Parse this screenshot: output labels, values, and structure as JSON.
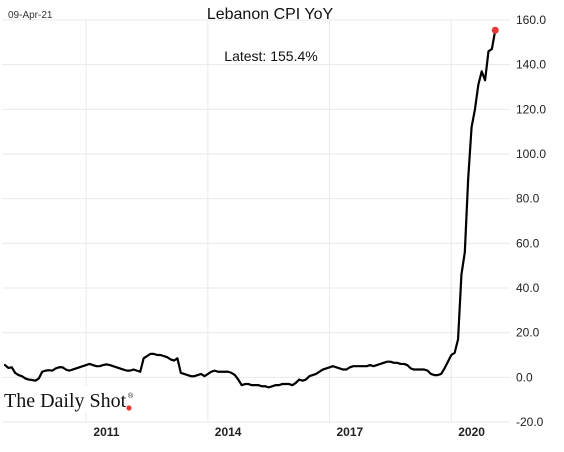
{
  "header": {
    "date_label": "09-Apr-21"
  },
  "brand": {
    "name": "The Daily Shot",
    "registered_mark": "®",
    "accent_color": "#e53935"
  },
  "chart_data": {
    "type": "line",
    "title": "Lebanon CPI YoY",
    "annotation": "Latest:  155.4%",
    "xlabel": "",
    "ylabel": "",
    "ylim": [
      -20,
      160
    ],
    "y_ticks": [
      "160.0",
      "140.0",
      "120.0",
      "100.0",
      "80.0",
      "60.0",
      "40.0",
      "20.0",
      "0.0",
      "-20.0"
    ],
    "x_ticks": [
      "2011",
      "2014",
      "2017",
      "2020"
    ],
    "grid": true,
    "line_color": "#000000",
    "last_point_color": "#e53935",
    "series": [
      {
        "values": [
          [
            "2009-01",
            5.5
          ],
          [
            "2009-02",
            4.2
          ],
          [
            "2009-03",
            4.5
          ],
          [
            "2009-04",
            2.0
          ],
          [
            "2009-05",
            1.0
          ],
          [
            "2009-06",
            0.5
          ],
          [
            "2009-07",
            -0.5
          ],
          [
            "2009-08",
            -1.0
          ],
          [
            "2009-09",
            -1.2
          ],
          [
            "2009-10",
            -1.5
          ],
          [
            "2009-11",
            -0.5
          ],
          [
            "2009-12",
            2.5
          ],
          [
            "2010-01",
            3.0
          ],
          [
            "2010-02",
            3.2
          ],
          [
            "2010-03",
            3.0
          ],
          [
            "2010-04",
            4.0
          ],
          [
            "2010-05",
            4.5
          ],
          [
            "2010-06",
            4.5
          ],
          [
            "2010-07",
            3.5
          ],
          [
            "2010-08",
            3.0
          ],
          [
            "2010-09",
            3.5
          ],
          [
            "2010-10",
            4.0
          ],
          [
            "2010-11",
            4.5
          ],
          [
            "2010-12",
            5.0
          ],
          [
            "2011-01",
            5.5
          ],
          [
            "2011-02",
            6.0
          ],
          [
            "2011-03",
            5.5
          ],
          [
            "2011-04",
            5.0
          ],
          [
            "2011-05",
            5.0
          ],
          [
            "2011-06",
            5.5
          ],
          [
            "2011-07",
            5.8
          ],
          [
            "2011-08",
            5.5
          ],
          [
            "2011-09",
            5.0
          ],
          [
            "2011-10",
            4.5
          ],
          [
            "2011-11",
            4.0
          ],
          [
            "2011-12",
            3.5
          ],
          [
            "2012-01",
            3.0
          ],
          [
            "2012-02",
            3.0
          ],
          [
            "2012-03",
            3.5
          ],
          [
            "2012-04",
            3.0
          ],
          [
            "2012-05",
            2.5
          ],
          [
            "2012-06",
            8.5
          ],
          [
            "2012-07",
            9.5
          ],
          [
            "2012-08",
            10.5
          ],
          [
            "2012-09",
            10.5
          ],
          [
            "2012-10",
            10.0
          ],
          [
            "2012-11",
            10.0
          ],
          [
            "2012-12",
            9.5
          ],
          [
            "2013-01",
            9.0
          ],
          [
            "2013-02",
            8.0
          ],
          [
            "2013-03",
            7.5
          ],
          [
            "2013-04",
            8.5
          ],
          [
            "2013-05",
            2.0
          ],
          [
            "2013-06",
            1.5
          ],
          [
            "2013-07",
            1.0
          ],
          [
            "2013-08",
            0.5
          ],
          [
            "2013-09",
            0.5
          ],
          [
            "2013-10",
            1.0
          ],
          [
            "2013-11",
            1.5
          ],
          [
            "2013-12",
            0.5
          ],
          [
            "2014-01",
            1.5
          ],
          [
            "2014-02",
            2.5
          ],
          [
            "2014-03",
            3.0
          ],
          [
            "2014-04",
            2.5
          ],
          [
            "2014-05",
            2.5
          ],
          [
            "2014-06",
            2.5
          ],
          [
            "2014-07",
            2.5
          ],
          [
            "2014-08",
            2.0
          ],
          [
            "2014-09",
            1.0
          ],
          [
            "2014-10",
            -1.0
          ],
          [
            "2014-11",
            -3.5
          ],
          [
            "2014-12",
            -3.0
          ],
          [
            "2015-01",
            -3.0
          ],
          [
            "2015-02",
            -3.5
          ],
          [
            "2015-03",
            -3.5
          ],
          [
            "2015-04",
            -3.5
          ],
          [
            "2015-05",
            -4.0
          ],
          [
            "2015-06",
            -4.0
          ],
          [
            "2015-07",
            -4.5
          ],
          [
            "2015-08",
            -4.0
          ],
          [
            "2015-09",
            -3.5
          ],
          [
            "2015-10",
            -3.5
          ],
          [
            "2015-11",
            -3.0
          ],
          [
            "2015-12",
            -3.0
          ],
          [
            "2016-01",
            -3.0
          ],
          [
            "2016-02",
            -3.5
          ],
          [
            "2016-03",
            -2.5
          ],
          [
            "2016-04",
            -1.0
          ],
          [
            "2016-05",
            -1.5
          ],
          [
            "2016-06",
            -1.0
          ],
          [
            "2016-07",
            0.5
          ],
          [
            "2016-08",
            1.0
          ],
          [
            "2016-09",
            1.5
          ],
          [
            "2016-10",
            2.5
          ],
          [
            "2016-11",
            3.5
          ],
          [
            "2016-12",
            4.0
          ],
          [
            "2017-01",
            4.5
          ],
          [
            "2017-02",
            5.0
          ],
          [
            "2017-03",
            4.5
          ],
          [
            "2017-04",
            4.0
          ],
          [
            "2017-05",
            3.5
          ],
          [
            "2017-06",
            3.5
          ],
          [
            "2017-07",
            4.5
          ],
          [
            "2017-08",
            5.0
          ],
          [
            "2017-09",
            5.0
          ],
          [
            "2017-10",
            5.0
          ],
          [
            "2017-11",
            5.0
          ],
          [
            "2017-12",
            5.0
          ],
          [
            "2018-01",
            5.5
          ],
          [
            "2018-02",
            5.0
          ],
          [
            "2018-03",
            5.5
          ],
          [
            "2018-04",
            6.0
          ],
          [
            "2018-05",
            6.5
          ],
          [
            "2018-06",
            7.0
          ],
          [
            "2018-07",
            7.0
          ],
          [
            "2018-08",
            6.5
          ],
          [
            "2018-09",
            6.5
          ],
          [
            "2018-10",
            6.0
          ],
          [
            "2018-11",
            6.0
          ],
          [
            "2018-12",
            5.5
          ],
          [
            "2019-01",
            4.0
          ],
          [
            "2019-02",
            3.5
          ],
          [
            "2019-03",
            3.5
          ],
          [
            "2019-04",
            3.5
          ],
          [
            "2019-05",
            3.5
          ],
          [
            "2019-06",
            3.0
          ],
          [
            "2019-07",
            1.5
          ],
          [
            "2019-08",
            1.0
          ],
          [
            "2019-09",
            1.0
          ],
          [
            "2019-10",
            1.5
          ],
          [
            "2019-11",
            4.0
          ],
          [
            "2019-12",
            7.0
          ],
          [
            "2020-01",
            10.0
          ],
          [
            "2020-02",
            11.0
          ],
          [
            "2020-03",
            17.0
          ],
          [
            "2020-04",
            46.0
          ],
          [
            "2020-05",
            56.0
          ],
          [
            "2020-06",
            89.0
          ],
          [
            "2020-07",
            112.0
          ],
          [
            "2020-08",
            120.0
          ],
          [
            "2020-09",
            131.0
          ],
          [
            "2020-10",
            137.0
          ],
          [
            "2020-11",
            133.0
          ],
          [
            "2020-12",
            146.0
          ],
          [
            "2021-01",
            147.0
          ],
          [
            "2021-02",
            155.4
          ]
        ]
      }
    ]
  }
}
